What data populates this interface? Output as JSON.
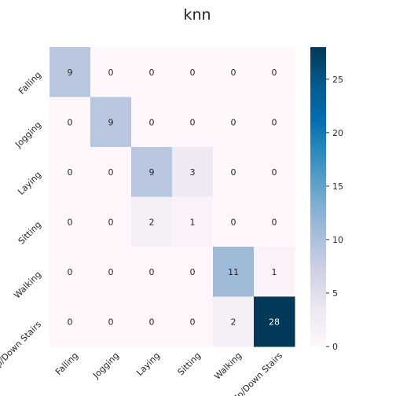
{
  "chart_data": {
    "type": "heatmap",
    "title": "knn",
    "xlabel": "",
    "ylabel": "",
    "x_categories": [
      "Falling",
      "Jogging",
      "Laying",
      "Sitting",
      "Walking",
      "Up/Down Stairs"
    ],
    "y_categories": [
      "Falling",
      "Jogging",
      "Laying",
      "Sitting",
      "Walking",
      "Up/Down Stairs"
    ],
    "values": [
      [
        9,
        0,
        0,
        0,
        0,
        0
      ],
      [
        0,
        9,
        0,
        0,
        0,
        0
      ],
      [
        0,
        0,
        9,
        3,
        0,
        0
      ],
      [
        0,
        0,
        2,
        1,
        0,
        0
      ],
      [
        0,
        0,
        0,
        0,
        11,
        1
      ],
      [
        0,
        0,
        0,
        0,
        2,
        28
      ]
    ],
    "colorbar": {
      "min": 0,
      "max": 28,
      "ticks": [
        0,
        5,
        10,
        15,
        20,
        25
      ],
      "colormap": "PuBu"
    },
    "grid": false
  }
}
